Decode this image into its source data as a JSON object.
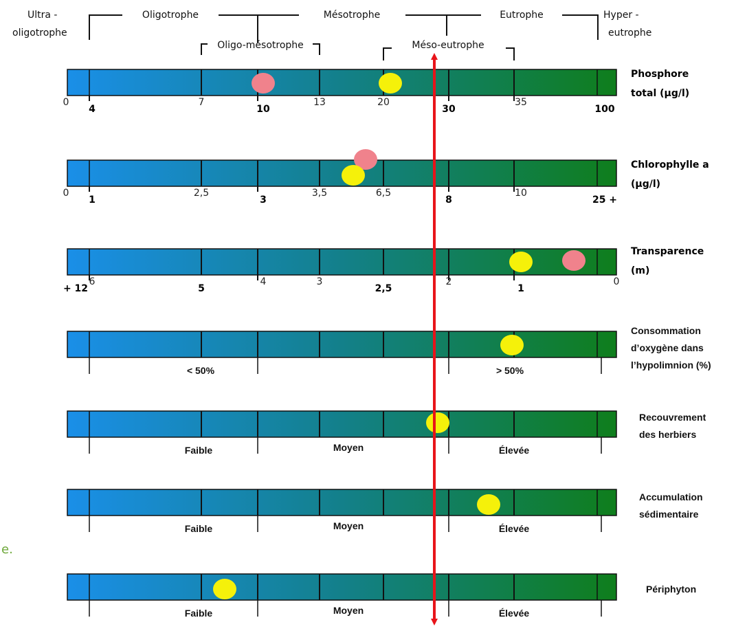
{
  "header": {
    "ultra": [
      "Ultra -",
      "oligotrophe"
    ],
    "oligo": "Oligotrophe",
    "meso": "Mésotrophe",
    "eutro": "Eutrophe",
    "hyper": [
      "Hyper -",
      "eutrophe"
    ],
    "oligo_meso": "Oligo-mésotrophe",
    "meso_eutro": "Méso-eutrophe"
  },
  "side_text": "e.",
  "colors": {
    "bar_start": "#1a8fe8",
    "bar_mid": "#13808a",
    "bar_end": "#0f7e1c",
    "yellow_marker": "#f5f10a",
    "pink_marker": "#f0828c",
    "arrow": "#e8141a"
  },
  "scales": [
    {
      "id": "phosphore",
      "label": [
        "Phosphore",
        "total (µg/l)"
      ],
      "ticks": [
        {
          "text": "0",
          "bold": false
        },
        {
          "text": "4",
          "bold": true
        },
        {
          "text": "7",
          "bold": false
        },
        {
          "text": "10",
          "bold": true
        },
        {
          "text": "13",
          "bold": false
        },
        {
          "text": "20",
          "bold": false
        },
        {
          "text": "30",
          "bold": true
        },
        {
          "text": "35",
          "bold": false
        },
        {
          "text": "100",
          "bold": true
        }
      ],
      "markers": [
        "pink",
        "yellow"
      ]
    },
    {
      "id": "chlorophylle",
      "label": [
        "Chlorophylle a",
        "(µg/l)"
      ],
      "ticks": [
        {
          "text": "0",
          "bold": false
        },
        {
          "text": "1",
          "bold": true
        },
        {
          "text": "2,5",
          "bold": false
        },
        {
          "text": "3",
          "bold": true
        },
        {
          "text": "3,5",
          "bold": false
        },
        {
          "text": "6,5",
          "bold": false
        },
        {
          "text": "8",
          "bold": true
        },
        {
          "text": "10",
          "bold": false
        },
        {
          "text": "25 +",
          "bold": true
        }
      ],
      "markers": [
        "pink",
        "yellow"
      ]
    },
    {
      "id": "transparence",
      "label": [
        "Transparence",
        "(m)"
      ],
      "ticks": [
        {
          "text": "+ 12",
          "bold": true
        },
        {
          "text": "6",
          "bold": false
        },
        {
          "text": "5",
          "bold": true
        },
        {
          "text": "4",
          "bold": false
        },
        {
          "text": "3",
          "bold": false
        },
        {
          "text": "2,5",
          "bold": true
        },
        {
          "text": "2",
          "bold": false
        },
        {
          "text": "1",
          "bold": true
        },
        {
          "text": "0",
          "bold": false
        }
      ],
      "markers": [
        "yellow",
        "pink"
      ]
    },
    {
      "id": "oxygene",
      "label": [
        "Consommation",
        "d’oxygène dans",
        "l’hypolimnion (%)"
      ],
      "categories": [
        "< 50%",
        "> 50%"
      ],
      "markers": [
        "yellow"
      ]
    },
    {
      "id": "herbiers",
      "label": [
        "Recouvrement",
        "des herbiers"
      ],
      "categories": [
        "Faible",
        "Moyen",
        "Élevée"
      ],
      "markers": [
        "yellow"
      ]
    },
    {
      "id": "sediment",
      "label": [
        "Accumulation",
        "sédimentaire"
      ],
      "categories": [
        "Faible",
        "Moyen",
        "Élevée"
      ],
      "markers": [
        "yellow"
      ]
    },
    {
      "id": "periphyton",
      "label": [
        "Périphyton"
      ],
      "categories": [
        "Faible",
        "Moyen",
        "Élevée"
      ],
      "markers": [
        "yellow"
      ]
    }
  ]
}
